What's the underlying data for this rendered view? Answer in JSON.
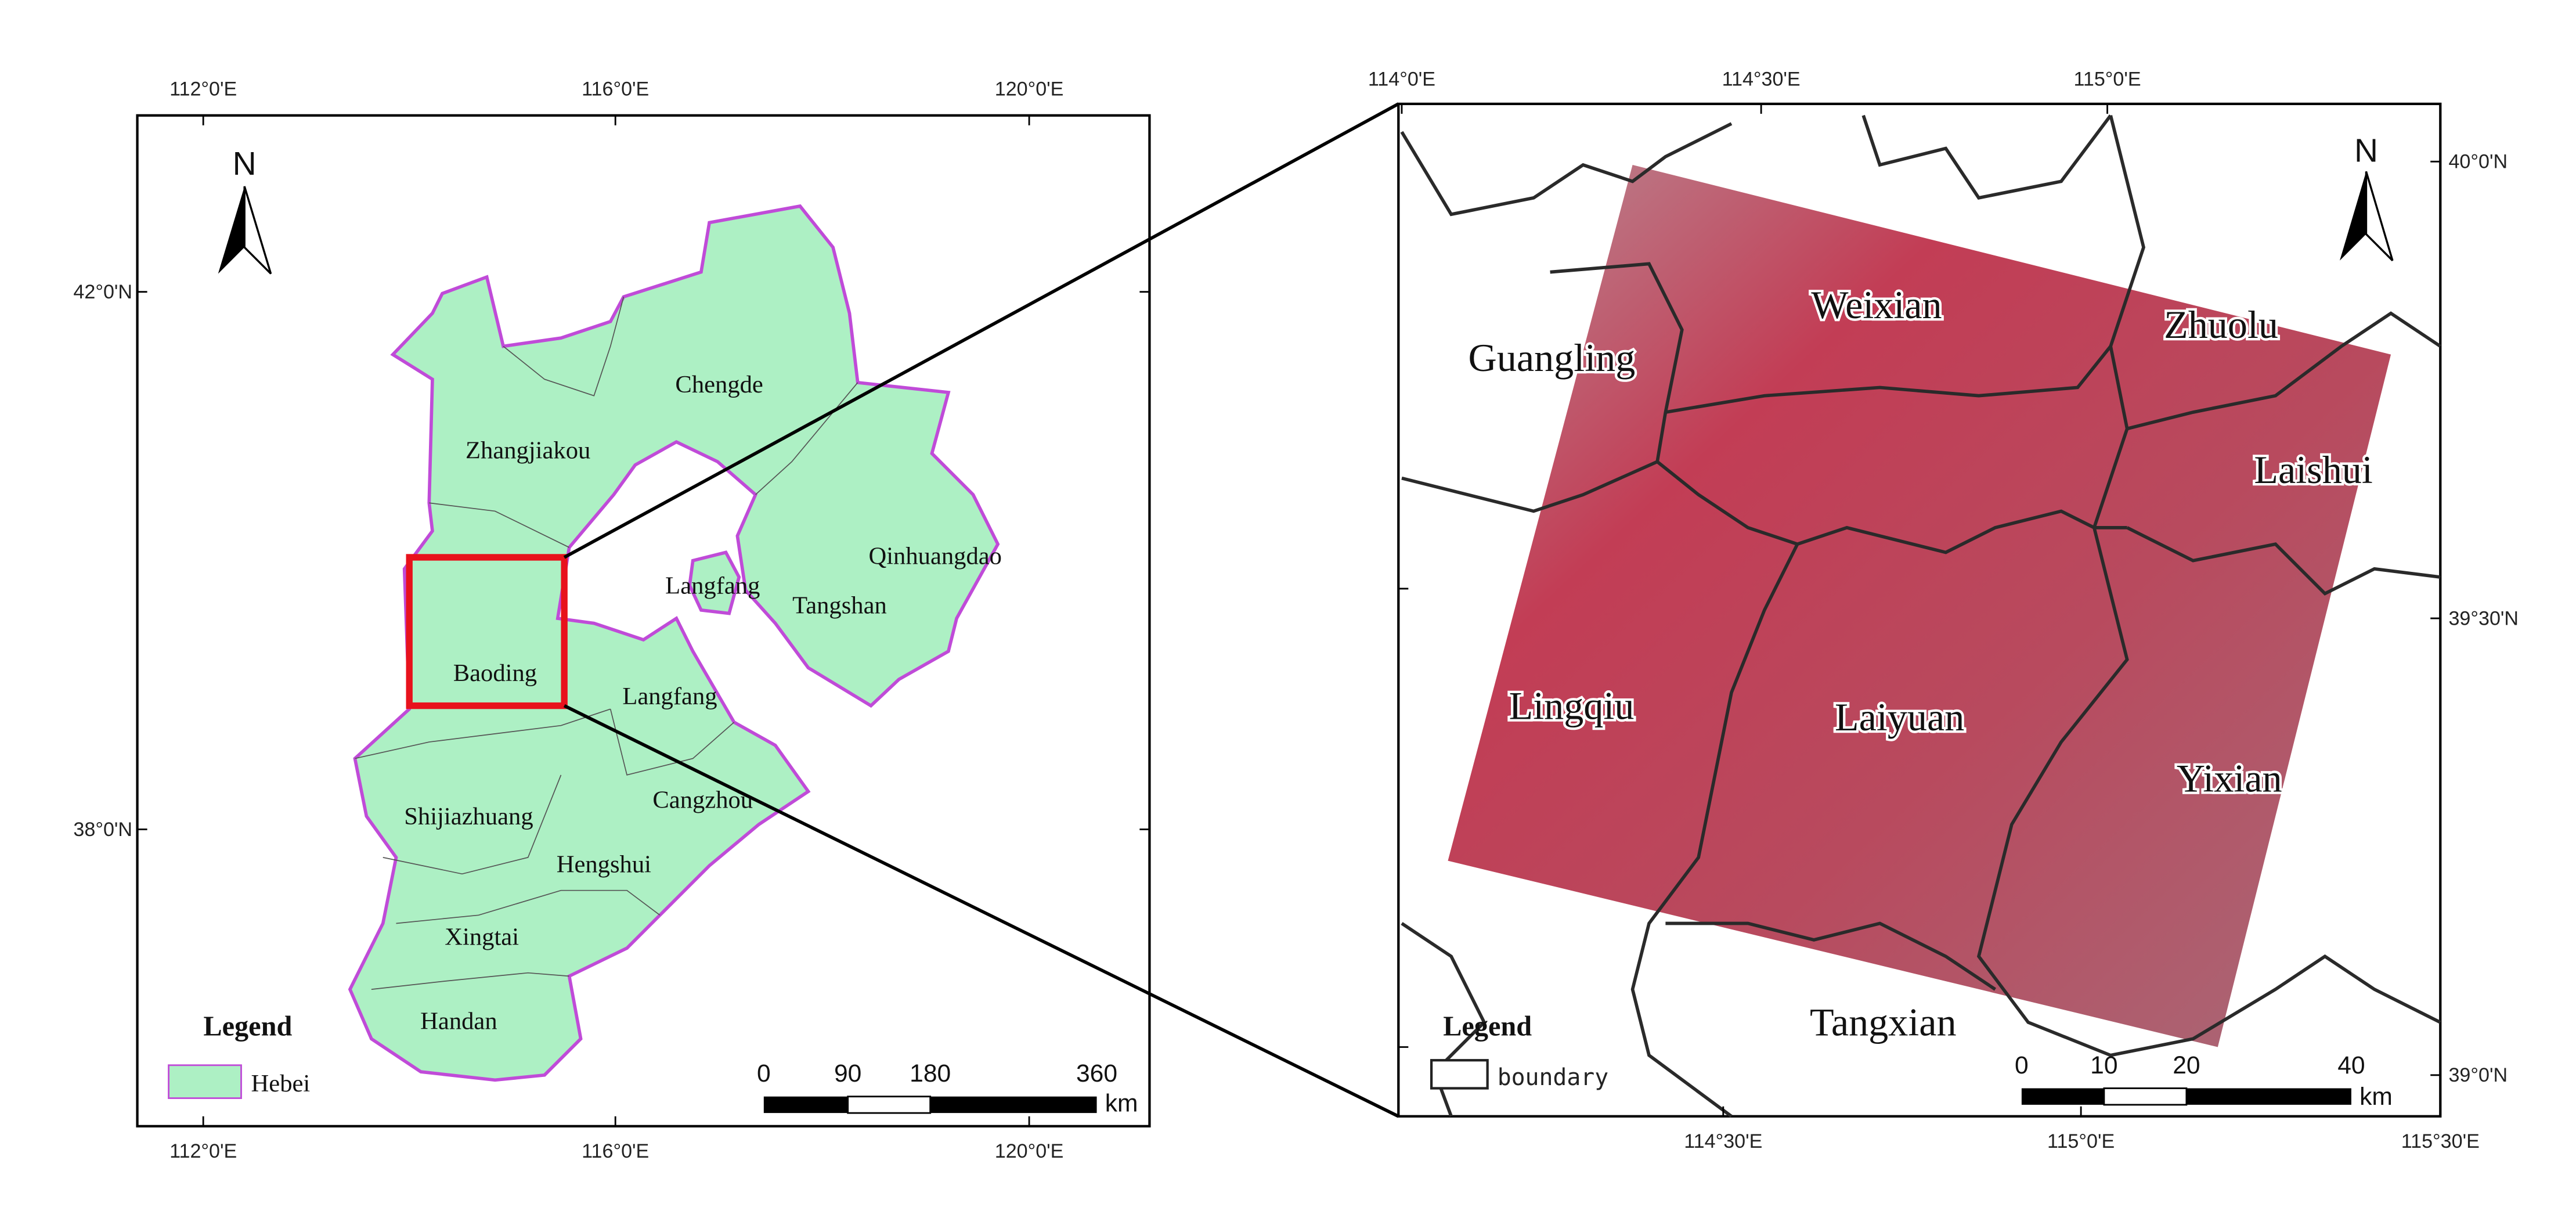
{
  "left_map": {
    "top_lon_labels": [
      "112°0'E",
      "116°0'E",
      "120°0'E"
    ],
    "bottom_lon_labels": [
      "112°0'E",
      "116°0'E",
      "120°0'E"
    ],
    "lat_labels": [
      "42°0'N",
      "38°0'N"
    ],
    "north": "N",
    "regions": [
      "Chengde",
      "Zhangjiakou",
      "Qinhuangdao",
      "Langfang",
      "Tangshan",
      "Baoding",
      "Langfang",
      "Cangzhou",
      "Shijiazhuang",
      "Hengshui",
      "Xingtai",
      "Handan"
    ],
    "legend": {
      "title": "Legend",
      "items": [
        "Hebei"
      ]
    },
    "scale_bar": {
      "ticks": [
        0,
        90,
        180,
        360
      ],
      "unit": "km"
    }
  },
  "right_map": {
    "top_lon_labels": [
      "114°0'E",
      "114°30'E",
      "115°0'E"
    ],
    "bottom_lon_labels": [
      "114°30'E",
      "115°0'E",
      "115°30'E"
    ],
    "lat_labels": [
      "40°0'N",
      "39°30'N",
      "39°0'N"
    ],
    "north": "N",
    "regions": [
      "Weixian",
      "Zhuolu",
      "Guangling",
      "Laishui",
      "Lingqiu",
      "Laiyuan",
      "Yixian",
      "Tangxian"
    ],
    "legend": {
      "title": "Legend",
      "items": [
        "boundary"
      ]
    },
    "scale_bar": {
      "ticks": [
        0,
        10,
        20,
        40
      ],
      "unit": "km"
    }
  }
}
